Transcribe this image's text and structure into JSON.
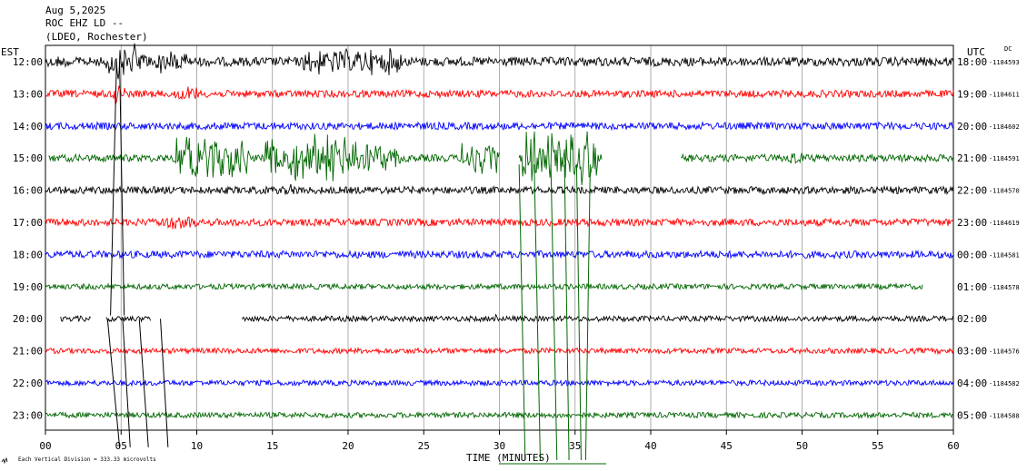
{
  "chart_data": {
    "type": "line",
    "title": {
      "date": "Aug 5,2025",
      "station": "ROC EHZ LD --",
      "network": "(LDEO, Rochester)"
    },
    "left_axis_title": "EST",
    "right_axis_title": "UTC",
    "dc_label": "DC",
    "xlabel": "TIME (MINUTES)",
    "xlim": [
      0,
      60
    ],
    "x_ticks": [
      "00",
      "05",
      "10",
      "15",
      "20",
      "25",
      "30",
      "35",
      "40",
      "45",
      "50",
      "55",
      "60"
    ],
    "scale_note": "Each Vertical Division = 333.33 microvolts",
    "scale_icon": "seismograph-icon",
    "grid": "vertical lines every 5 minutes",
    "colors": [
      "#000000",
      "#ff0000",
      "#0000ff",
      "#006600"
    ],
    "rows": [
      {
        "est": "12:00",
        "utc": "18:00",
        "dc": "-1184593",
        "color": "#000000",
        "segments": [
          [
            0,
            60
          ]
        ],
        "noise": 5,
        "bursts": [
          [
            4,
            6,
            22
          ],
          [
            5.8,
            9.5,
            14
          ],
          [
            17,
            23.5,
            16
          ],
          [
            0.5,
            2,
            8
          ]
        ]
      },
      {
        "est": "13:00",
        "utc": "19:00",
        "dc": "-1184611",
        "color": "#ff0000",
        "segments": [
          [
            0,
            60
          ]
        ],
        "noise": 4,
        "bursts": [
          [
            8.5,
            10,
            10
          ],
          [
            4.5,
            5.5,
            12
          ]
        ]
      },
      {
        "est": "14:00",
        "utc": "20:00",
        "dc": "-1184602",
        "color": "#0000ff",
        "segments": [
          [
            0,
            60
          ]
        ],
        "noise": 4,
        "bursts": []
      },
      {
        "est": "15:00",
        "utc": "21:00",
        "dc": "-1184591",
        "color": "#006600",
        "segments": [
          [
            0.2,
            30
          ],
          [
            31.3,
            36.8
          ],
          [
            42,
            60
          ]
        ],
        "noise": 4,
        "bursts": [
          [
            8.5,
            13.5,
            28
          ],
          [
            14.5,
            21.5,
            30
          ],
          [
            21.5,
            23.5,
            18
          ],
          [
            27.5,
            30,
            20
          ],
          [
            31.5,
            36.5,
            32
          ],
          [
            49,
            50,
            10
          ]
        ]
      },
      {
        "est": "16:00",
        "utc": "22:00",
        "dc": "-1184570",
        "color": "#000000",
        "segments": [
          [
            0,
            60
          ]
        ],
        "noise": 4,
        "bursts": [
          [
            15,
            16.5,
            9
          ]
        ]
      },
      {
        "est": "17:00",
        "utc": "23:00",
        "dc": "-1184619",
        "color": "#ff0000",
        "segments": [
          [
            0,
            60
          ]
        ],
        "noise": 4,
        "bursts": [
          [
            7.5,
            10,
            9
          ]
        ]
      },
      {
        "est": "18:00",
        "utc": "00:00",
        "dc": "-1184581",
        "color": "#0000ff",
        "segments": [
          [
            0,
            60
          ]
        ],
        "noise": 4,
        "bursts": []
      },
      {
        "est": "19:00",
        "utc": "01:00",
        "dc": "-1184578",
        "color": "#006600",
        "segments": [
          [
            0,
            58
          ]
        ],
        "noise": 3,
        "bursts": []
      },
      {
        "est": "20:00",
        "utc": "02:00",
        "dc": "",
        "color": "#000000",
        "segments": [
          [
            1,
            3
          ],
          [
            4,
            7
          ],
          [
            13,
            60
          ]
        ],
        "noise": 3,
        "bursts": [
          [
            29.5,
            30,
            8
          ]
        ]
      },
      {
        "est": "21:00",
        "utc": "03:00",
        "dc": "-1184576",
        "color": "#ff0000",
        "segments": [
          [
            0,
            60
          ]
        ],
        "noise": 3,
        "bursts": []
      },
      {
        "est": "22:00",
        "utc": "04:00",
        "dc": "-1184582",
        "color": "#0000ff",
        "segments": [
          [
            0,
            60
          ]
        ],
        "noise": 3,
        "bursts": []
      },
      {
        "est": "23:00",
        "utc": "05:00",
        "dc": "-1184588",
        "color": "#006600",
        "segments": [
          [
            0,
            60
          ]
        ],
        "noise": 3,
        "bursts": []
      }
    ],
    "strokes": [
      {
        "color": "#000000",
        "x": [
          4.7,
          4.3
        ],
        "from_row": 0,
        "to_row": 7.9
      },
      {
        "color": "#000000",
        "x": [
          4.9,
          5.2
        ],
        "from_row": 0,
        "to_row": 7.9
      },
      {
        "color": "#000000",
        "x": [
          4.1,
          4.9
        ],
        "from_row": 8,
        "to_row": 12.0
      },
      {
        "color": "#000000",
        "x": [
          5.1,
          5.6
        ],
        "from_row": 8,
        "to_row": 12.0
      },
      {
        "color": "#000000",
        "x": [
          6.2,
          6.8
        ],
        "from_row": 8,
        "to_row": 12.0
      },
      {
        "color": "#000000",
        "x": [
          7.6,
          8.1
        ],
        "from_row": 8,
        "to_row": 12.0
      },
      {
        "color": "#006600",
        "x": [
          31.3,
          31.7
        ],
        "from_row": 3.2,
        "to_row": 12.4
      },
      {
        "color": "#006600",
        "x": [
          32.3,
          32.7
        ],
        "from_row": 3.2,
        "to_row": 12.4
      },
      {
        "color": "#006600",
        "x": [
          33.4,
          33.8
        ],
        "from_row": 3.2,
        "to_row": 12.4
      },
      {
        "color": "#006600",
        "x": [
          34.3,
          34.6
        ],
        "from_row": 3.2,
        "to_row": 12.4
      },
      {
        "color": "#006600",
        "x": [
          35.1,
          35.4
        ],
        "from_row": 3.2,
        "to_row": 12.4
      },
      {
        "color": "#006600",
        "x": [
          36.0,
          35.7
        ],
        "from_row": 3.2,
        "to_row": 12.4
      }
    ]
  }
}
